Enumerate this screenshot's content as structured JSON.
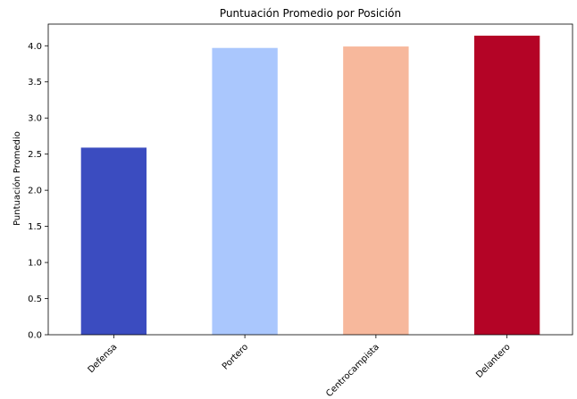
{
  "chart_data": {
    "type": "bar",
    "title": "Puntuación Promedio por Posición",
    "xlabel": "",
    "ylabel": "Puntuación Promedio",
    "categories": [
      "Defensa",
      "Portero",
      "Centrocampista",
      "Delantero"
    ],
    "values": [
      2.59,
      3.97,
      3.99,
      4.14
    ],
    "colors": [
      "#3b4cc0",
      "#aac7fd",
      "#f7b89c",
      "#b40426"
    ],
    "ylim": [
      0,
      4.3
    ],
    "yticks": [
      0.0,
      0.5,
      1.0,
      1.5,
      2.0,
      2.5,
      3.0,
      3.5,
      4.0
    ],
    "ytick_labels": [
      "0.0",
      "0.5",
      "1.0",
      "1.5",
      "2.0",
      "2.5",
      "3.0",
      "3.5",
      "4.0"
    ],
    "xtick_rotation_deg": 45,
    "grid": false,
    "legend": "none"
  }
}
